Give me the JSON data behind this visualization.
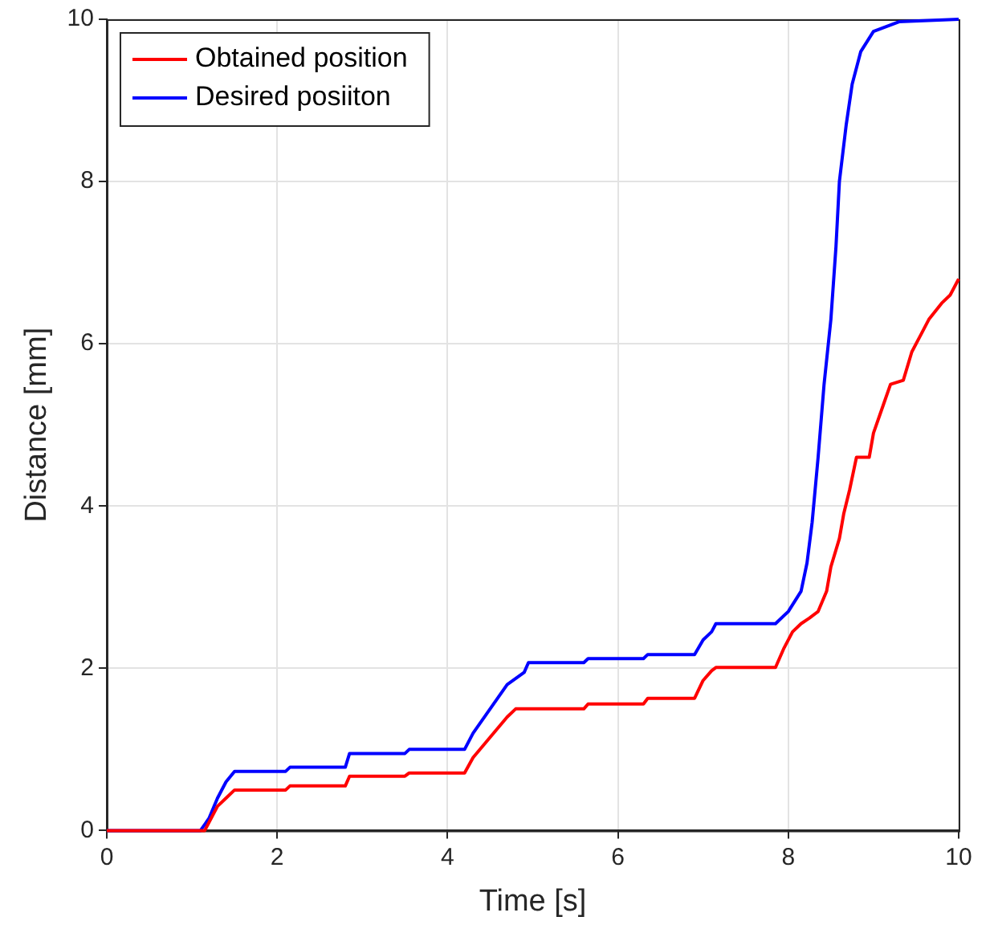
{
  "chart_data": {
    "type": "line",
    "xlabel": "Time [s]",
    "ylabel": "Distance [mm]",
    "xlim": [
      0,
      10
    ],
    "ylim": [
      0,
      10
    ],
    "xticks": [
      0,
      2,
      4,
      6,
      8,
      10
    ],
    "yticks": [
      0,
      2,
      4,
      6,
      8,
      10
    ],
    "grid": true,
    "legend": "top left",
    "marker": "none",
    "line_style": "solid",
    "series": [
      {
        "name": "Obtained position",
        "color": "#ff0000",
        "x": [
          0,
          1.15,
          1.3,
          1.4,
          1.5,
          2.1,
          2.15,
          2.8,
          2.85,
          3.5,
          3.55,
          4.2,
          4.3,
          4.5,
          4.7,
          4.8,
          5.6,
          5.65,
          6.3,
          6.35,
          6.9,
          7.0,
          7.1,
          7.15,
          7.85,
          7.95,
          8.05,
          8.15,
          8.25,
          8.35,
          8.45,
          8.5,
          8.6,
          8.65,
          8.72,
          8.8,
          8.95,
          9.0,
          9.1,
          9.2,
          9.35,
          9.45,
          9.55,
          9.65,
          9.8,
          9.9,
          10
        ],
        "values": [
          0,
          0,
          0.3,
          0.4,
          0.5,
          0.5,
          0.55,
          0.55,
          0.67,
          0.67,
          0.71,
          0.71,
          0.9,
          1.15,
          1.4,
          1.5,
          1.5,
          1.56,
          1.56,
          1.63,
          1.63,
          1.85,
          1.97,
          2.01,
          2.01,
          2.25,
          2.45,
          2.55,
          2.62,
          2.7,
          2.95,
          3.25,
          3.6,
          3.9,
          4.2,
          4.6,
          4.6,
          4.9,
          5.2,
          5.5,
          5.55,
          5.9,
          6.1,
          6.3,
          6.5,
          6.6,
          6.8
        ]
      },
      {
        "name": "Desired posiiton",
        "color": "#0000ff",
        "x": [
          0,
          1.1,
          1.2,
          1.3,
          1.4,
          1.5,
          2.1,
          2.15,
          2.8,
          2.85,
          3.5,
          3.55,
          4.2,
          4.3,
          4.5,
          4.7,
          4.9,
          4.95,
          5.6,
          5.65,
          6.3,
          6.35,
          6.9,
          7.0,
          7.1,
          7.15,
          7.85,
          8.0,
          8.15,
          8.22,
          8.28,
          8.35,
          8.42,
          8.5,
          8.56,
          8.6,
          8.68,
          8.75,
          8.85,
          9.0,
          9.3,
          10
        ],
        "values": [
          0,
          0,
          0.15,
          0.4,
          0.6,
          0.73,
          0.73,
          0.78,
          0.78,
          0.95,
          0.95,
          1.0,
          1.0,
          1.2,
          1.5,
          1.8,
          1.95,
          2.07,
          2.07,
          2.12,
          2.12,
          2.17,
          2.17,
          2.35,
          2.45,
          2.55,
          2.55,
          2.7,
          2.95,
          3.3,
          3.8,
          4.6,
          5.5,
          6.3,
          7.2,
          8.0,
          8.7,
          9.2,
          9.6,
          9.85,
          9.97,
          10
        ]
      }
    ]
  }
}
